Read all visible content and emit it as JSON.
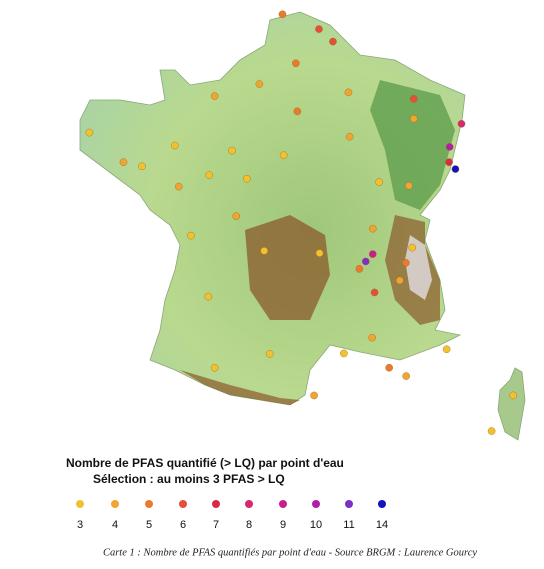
{
  "map": {
    "points": [
      {
        "lon": 2.35,
        "lat": 48.85,
        "count": 5
      },
      {
        "lon": 3.06,
        "lat": 50.63,
        "count": 6
      },
      {
        "lon": 1.1,
        "lat": 49.44,
        "count": 4
      },
      {
        "lon": 7.75,
        "lat": 48.58,
        "count": 8
      },
      {
        "lon": 7.34,
        "lat": 47.75,
        "count": 7
      },
      {
        "lon": 4.83,
        "lat": 45.76,
        "count": 9
      },
      {
        "lon": 5.72,
        "lat": 45.19,
        "count": 4
      },
      {
        "lon": 5.37,
        "lat": 43.3,
        "count": 5
      },
      {
        "lon": 1.44,
        "lat": 43.6,
        "count": 3
      },
      {
        "lon": -0.58,
        "lat": 44.84,
        "count": 3
      },
      {
        "lon": -1.55,
        "lat": 47.22,
        "count": 4
      },
      {
        "lon": -1.68,
        "lat": 48.11,
        "count": 3
      },
      {
        "lon": -4.49,
        "lat": 48.39,
        "count": 3
      },
      {
        "lon": -0.37,
        "lat": 49.18,
        "count": 4
      },
      {
        "lon": 2.3,
        "lat": 49.89,
        "count": 5
      },
      {
        "lon": 4.03,
        "lat": 49.26,
        "count": 4
      },
      {
        "lon": 6.18,
        "lat": 49.12,
        "count": 6
      },
      {
        "lon": 6.18,
        "lat": 48.69,
        "count": 4
      },
      {
        "lon": 5.04,
        "lat": 47.32,
        "count": 3
      },
      {
        "lon": 6.02,
        "lat": 47.24,
        "count": 4
      },
      {
        "lon": 1.9,
        "lat": 47.9,
        "count": 3
      },
      {
        "lon": 0.69,
        "lat": 47.39,
        "count": 3
      },
      {
        "lon": 0.34,
        "lat": 46.58,
        "count": 4
      },
      {
        "lon": 1.26,
        "lat": 45.83,
        "count": 3
      },
      {
        "lon": 3.08,
        "lat": 45.78,
        "count": 3
      },
      {
        "lon": 4.39,
        "lat": 45.44,
        "count": 5
      },
      {
        "lon": 4.89,
        "lat": 44.93,
        "count": 6
      },
      {
        "lon": 4.81,
        "lat": 43.95,
        "count": 4
      },
      {
        "lon": 3.88,
        "lat": 43.61,
        "count": 3
      },
      {
        "lon": 2.9,
        "lat": 42.7,
        "count": 4
      },
      {
        "lon": 7.26,
        "lat": 43.7,
        "count": 3
      },
      {
        "lon": 5.93,
        "lat": 43.12,
        "count": 4
      },
      {
        "lon": -0.37,
        "lat": 43.3,
        "count": 3
      },
      {
        "lon": -1.15,
        "lat": 46.16,
        "count": 3
      },
      {
        "lon": 0.2,
        "lat": 48.0,
        "count": 3
      },
      {
        "lon": 4.07,
        "lat": 48.3,
        "count": 4
      },
      {
        "lon": 5.92,
        "lat": 45.57,
        "count": 5
      },
      {
        "lon": 6.13,
        "lat": 45.9,
        "count": 3
      },
      {
        "lon": 9.45,
        "lat": 42.7,
        "count": 3
      },
      {
        "lon": 8.74,
        "lat": 41.93,
        "count": 3
      },
      {
        "lon": -3.37,
        "lat": 47.75,
        "count": 4
      },
      {
        "lon": -2.76,
        "lat": 47.66,
        "count": 3
      },
      {
        "lon": -0.55,
        "lat": 47.47,
        "count": 3
      },
      {
        "lon": 1.86,
        "lat": 50.95,
        "count": 5
      },
      {
        "lon": 3.52,
        "lat": 50.36,
        "count": 6
      },
      {
        "lon": 7.36,
        "lat": 48.08,
        "count": 10
      },
      {
        "lon": 4.83,
        "lat": 46.31,
        "count": 4
      },
      {
        "lon": 4.6,
        "lat": 45.6,
        "count": 11
      },
      {
        "lon": 7.55,
        "lat": 47.6,
        "count": 14
      }
    ],
    "legend": {
      "title": [
        "Nombre de PFAS quantifié (> LQ) par point d'eau",
        "Sélection : au moins 3 PFAS > LQ"
      ],
      "items": [
        {
          "value": 3,
          "color": "#f2c22e"
        },
        {
          "value": 4,
          "color": "#f0a431"
        },
        {
          "value": 5,
          "color": "#e97a2e"
        },
        {
          "value": 6,
          "color": "#e2503a"
        },
        {
          "value": 7,
          "color": "#d92b42"
        },
        {
          "value": 8,
          "color": "#d6286f"
        },
        {
          "value": 9,
          "color": "#c81e8e"
        },
        {
          "value": 10,
          "color": "#b21eaa"
        },
        {
          "value": 11,
          "color": "#7d2fc6"
        },
        {
          "value": 14,
          "color": "#1212c0"
        }
      ]
    },
    "caption": "Carte 1 : Nombre de PFAS quantifiés par point d'eau - Source BRGM : Laurence Gourcy"
  }
}
